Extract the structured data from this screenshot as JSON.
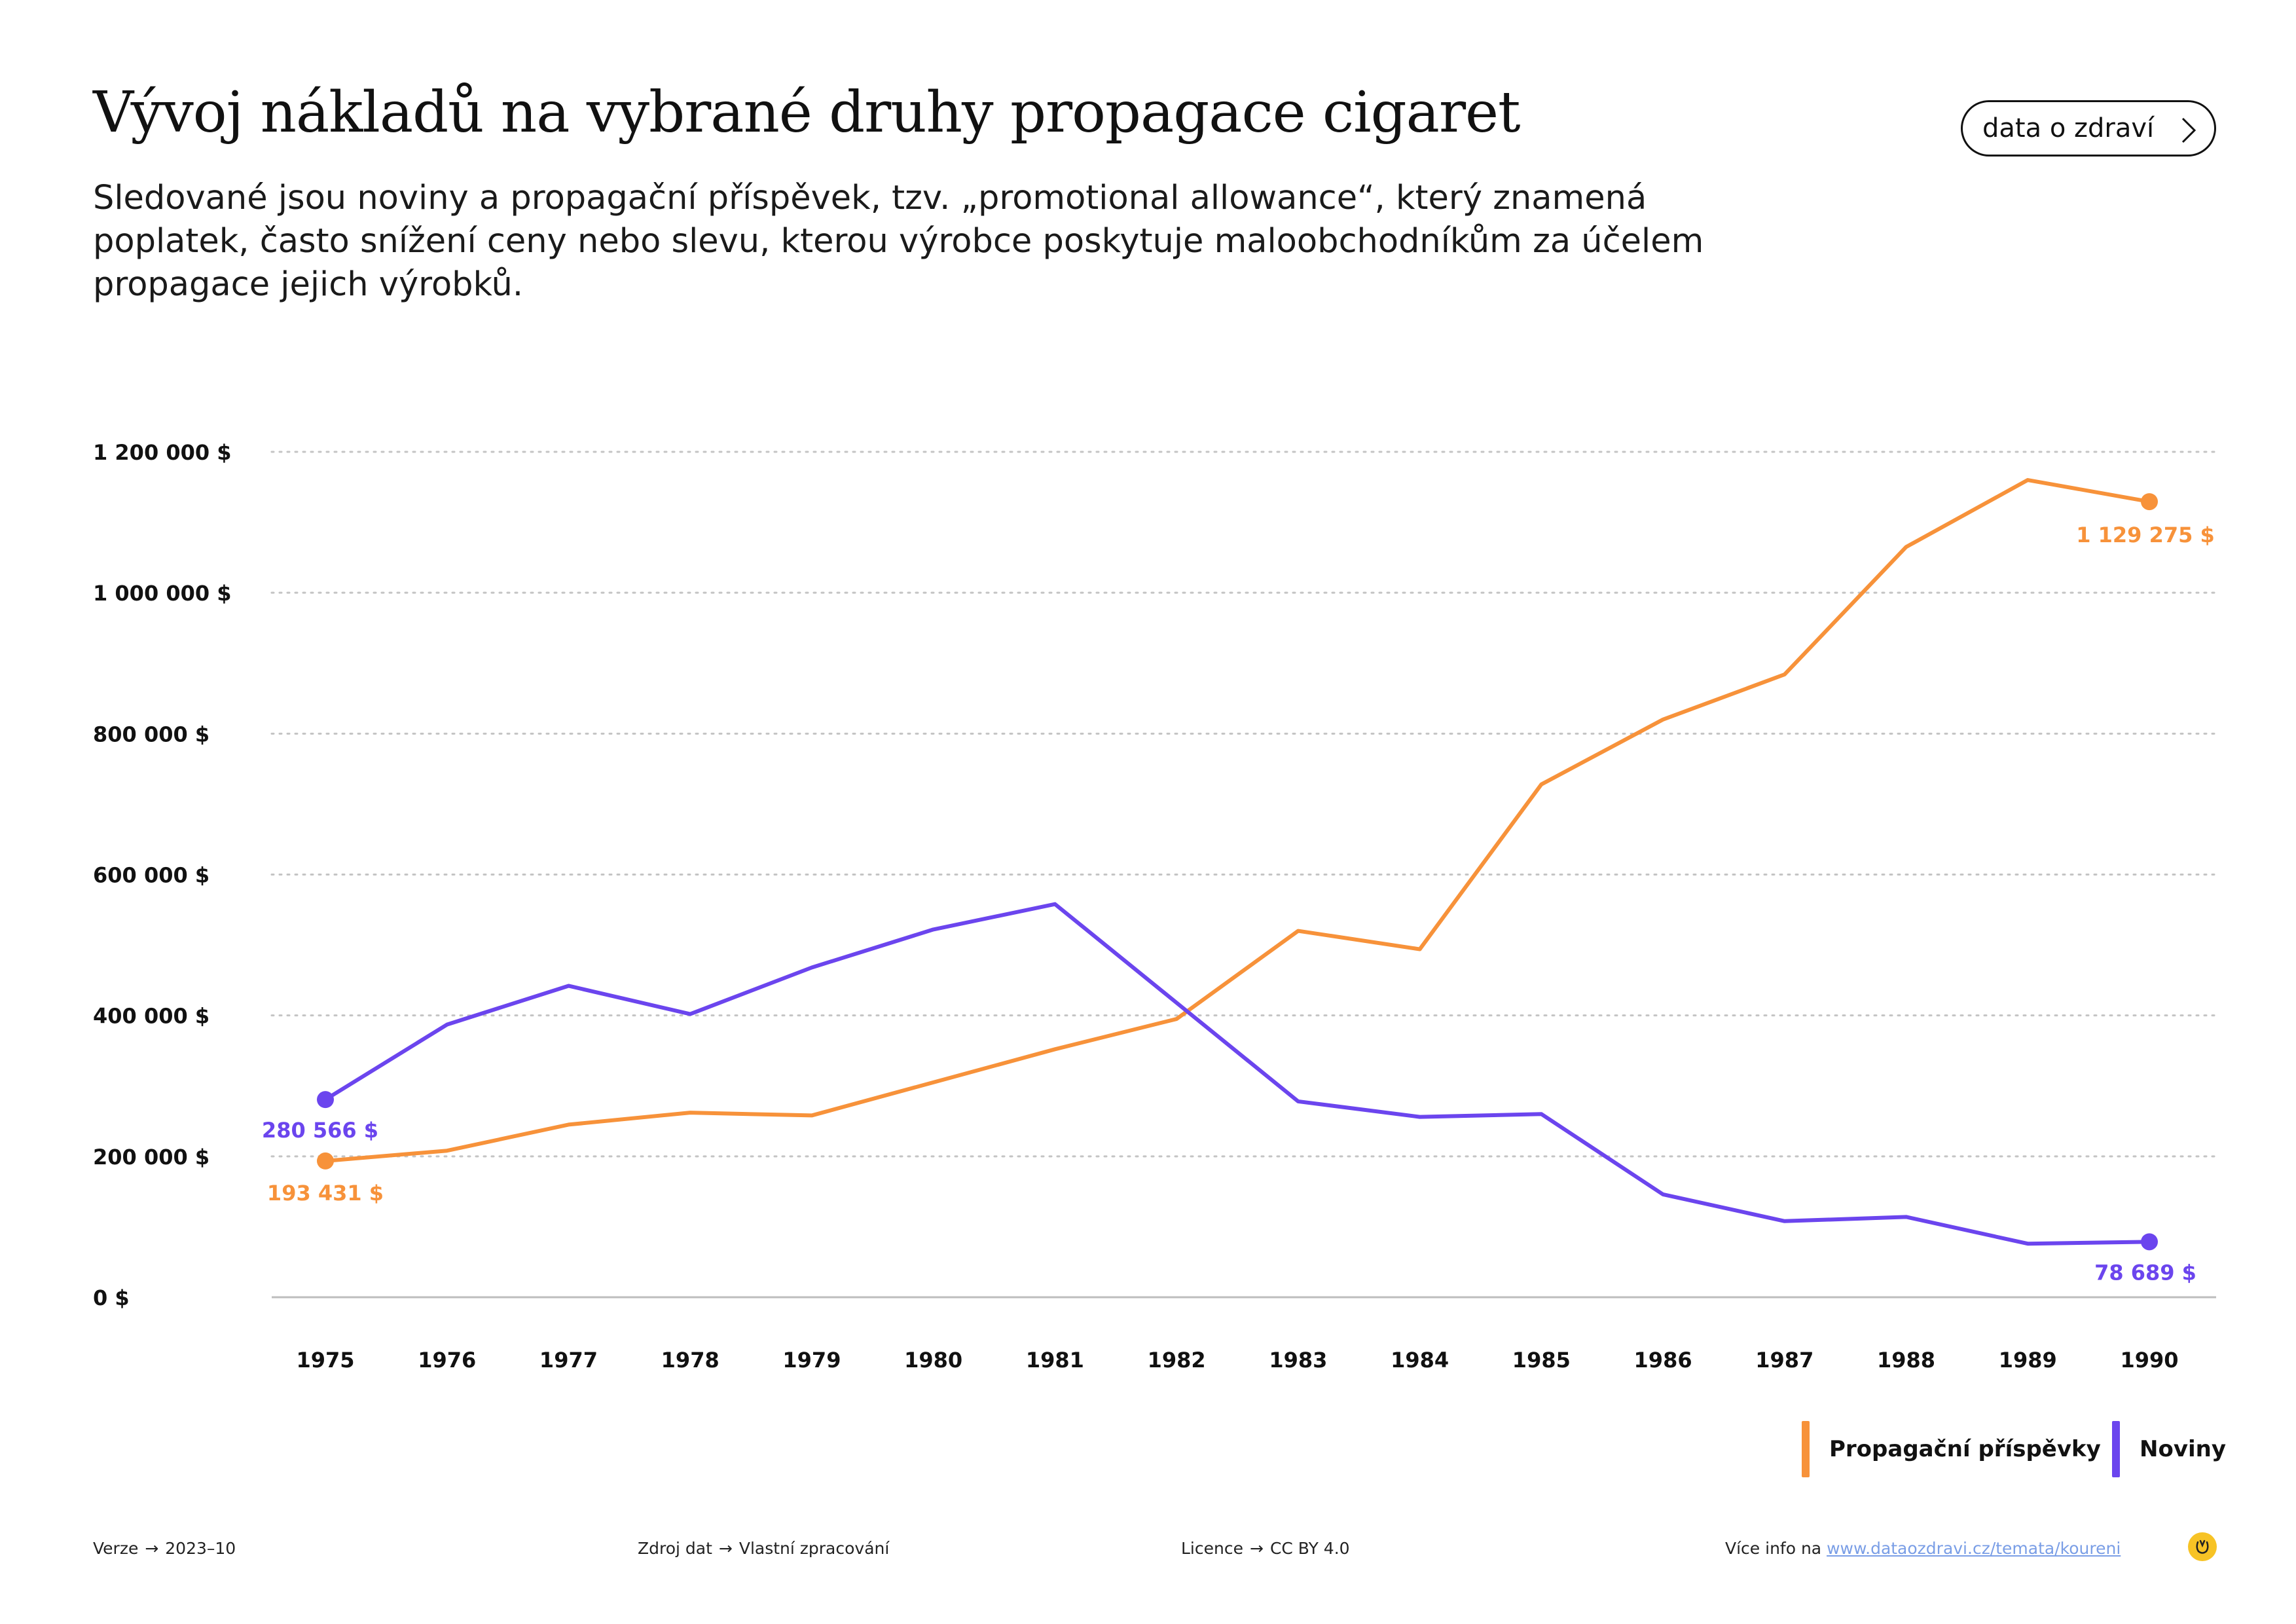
{
  "header": {
    "title": "Vývoj nákladů na vybrané druhy propagace cigaret",
    "subtitle": "Sledované jsou noviny a propagační příspěvek, tzv. „promotional allowance“, který znamená poplatek, často snížení ceny nebo slevu, kterou výrobce poskytuje maloobchodníkům za účelem propagace jejich výrobků.",
    "button_label": "data o zdraví"
  },
  "chart_data": {
    "type": "line",
    "x": [
      1975,
      1976,
      1977,
      1978,
      1979,
      1980,
      1981,
      1982,
      1983,
      1984,
      1985,
      1986,
      1987,
      1988,
      1989,
      1990
    ],
    "x_tick_labels": [
      "1975",
      "1976",
      "1977",
      "1978",
      "1979",
      "1980",
      "1981",
      "1982",
      "1983",
      "1984",
      "1985",
      "1986",
      "1987",
      "1988",
      "1989",
      "1990"
    ],
    "ylim": [
      0,
      1200000
    ],
    "y_ticks": [
      0,
      200000,
      400000,
      600000,
      800000,
      1000000,
      1200000
    ],
    "y_tick_labels": [
      "0 $",
      "200 000 $",
      "400 000 $",
      "600 000 $",
      "800 000 $",
      "1 000 000 $",
      "1 200 000 $"
    ],
    "grid": true,
    "legend_position": "bottom-right",
    "series": [
      {
        "name": "Propagační příspěvky",
        "color": "#f7923a",
        "values": [
          193431,
          208000,
          245000,
          262000,
          258000,
          305000,
          352000,
          395000,
          520000,
          494000,
          728000,
          820000,
          884000,
          1065000,
          1160000,
          1129275
        ],
        "start_label": "193 431 $",
        "end_label": "1 129 275 $"
      },
      {
        "name": "Noviny",
        "color": "#6b45ee",
        "values": [
          280566,
          387000,
          442000,
          402000,
          468000,
          522000,
          558000,
          418000,
          278000,
          256000,
          260000,
          146000,
          108000,
          114000,
          76000,
          78689
        ],
        "start_label": "280 566 $",
        "end_label": "78 689 $"
      }
    ]
  },
  "legend": {
    "items": [
      {
        "label": "Propagační příspěvky",
        "color": "#f7923a"
      },
      {
        "label": "Noviny",
        "color": "#6b45ee"
      }
    ]
  },
  "footer": {
    "version_label": "Verze",
    "version_value": "2023–10",
    "source_label": "Zdroj dat",
    "source_value": "Vlastní zpracování",
    "license_label": "Licence",
    "license_value": "CC BY 4.0",
    "info_label": "Více info na",
    "info_link": "www.dataozdravi.cz/temata/koureni"
  },
  "colors": {
    "accent_orange": "#f7923a",
    "accent_purple": "#6b45ee",
    "logo_yellow": "#f7c325"
  }
}
